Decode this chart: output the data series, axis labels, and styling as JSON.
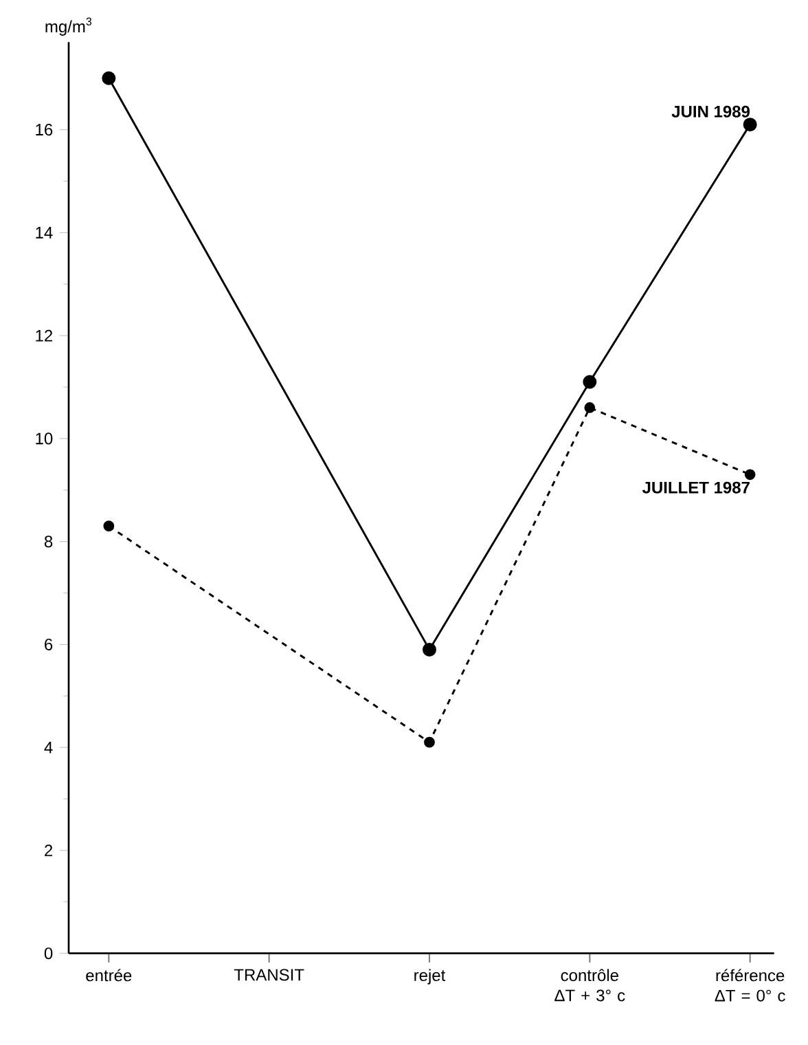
{
  "chart_data": {
    "type": "line",
    "ylabel": "mg/m$^{3}$",
    "categories": [
      "entrée",
      "TRANSIT",
      "rejet",
      "contrôle ΔT + 3° c",
      "référence ΔT = 0° c"
    ],
    "series": [
      {
        "name": "JUIN 1989",
        "color": "#000000",
        "line_style": "solid",
        "values": [
          17.0,
          null,
          5.9,
          11.1,
          16.1
        ]
      },
      {
        "name": "JUILLET 1987",
        "color": "#000000",
        "line_style": "dashed",
        "values": [
          8.3,
          null,
          4.1,
          10.6,
          9.3
        ]
      }
    ],
    "ylim": [
      0,
      17.7
    ],
    "yticks": [
      0,
      2,
      4,
      6,
      8,
      10,
      12,
      14,
      16
    ],
    "marker": "circle",
    "grid": false
  }
}
